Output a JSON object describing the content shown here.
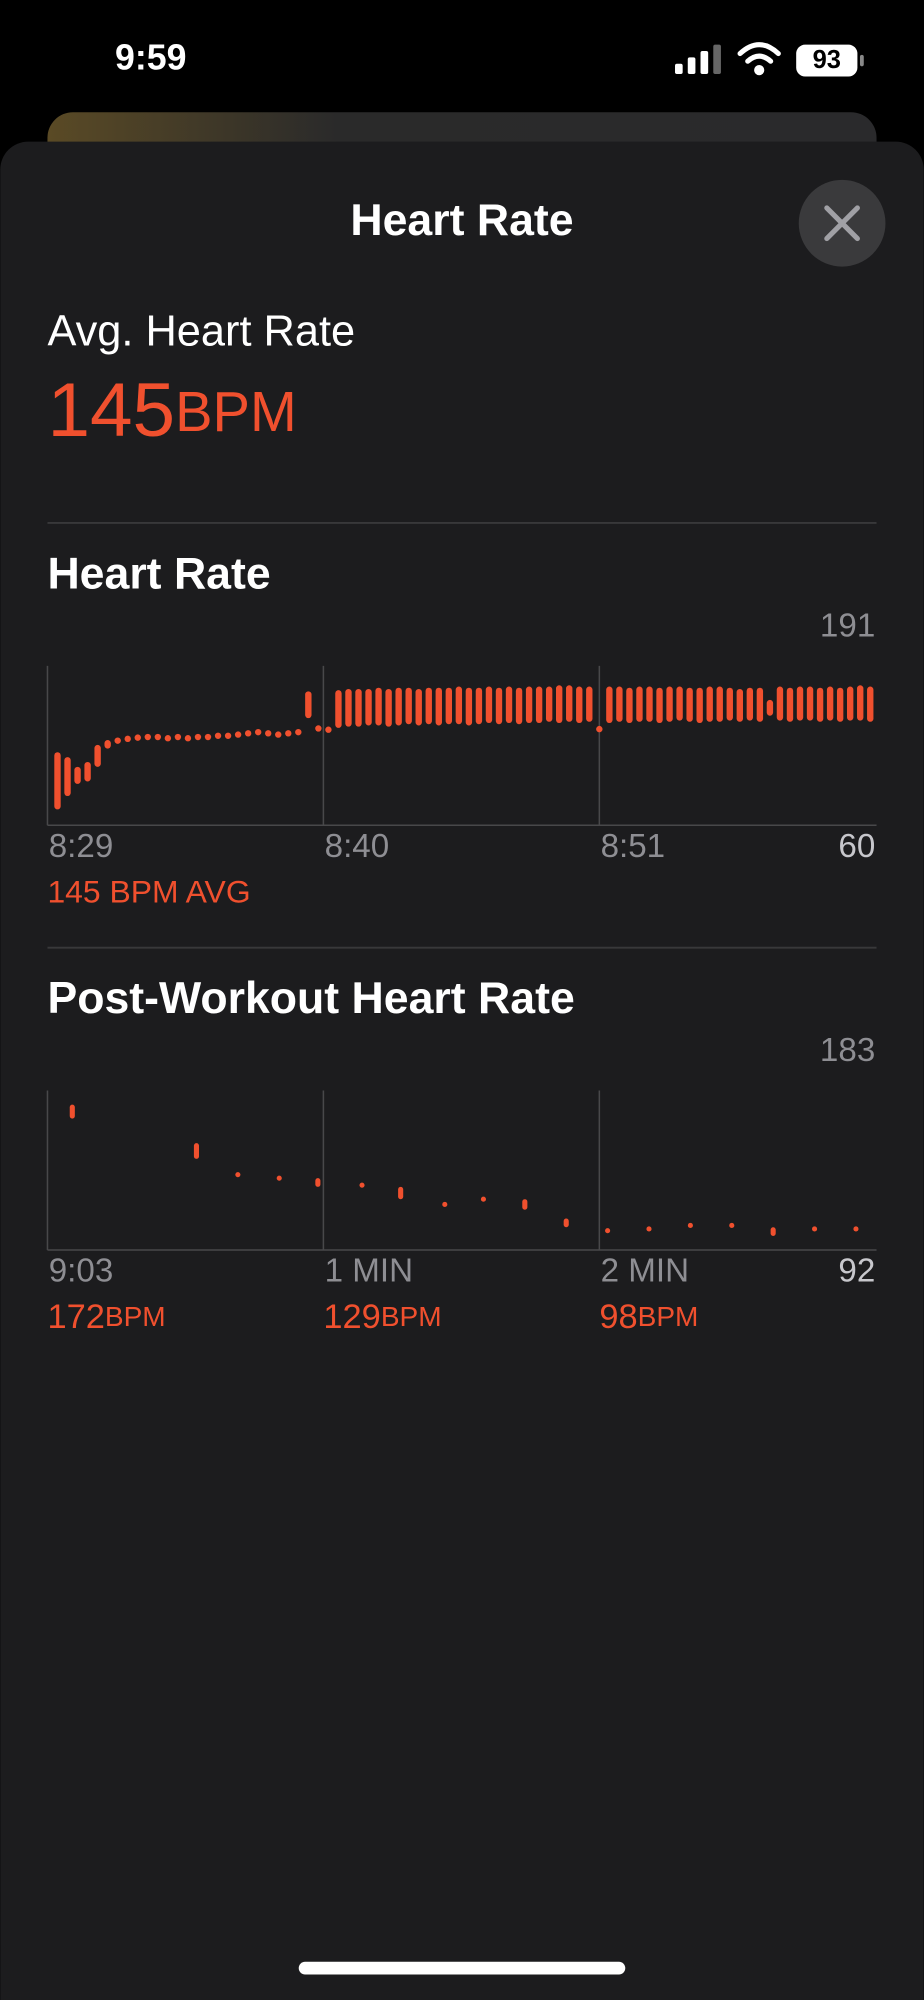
{
  "status_bar": {
    "time": "9:59",
    "battery": "93"
  },
  "header": {
    "title": "Heart Rate"
  },
  "summary": {
    "label": "Avg. Heart Rate",
    "value": 145,
    "unit": "BPM"
  },
  "chart_data": [
    {
      "type": "range-bar",
      "title": "Heart Rate",
      "color": "#f0502e",
      "x": [
        0.4,
        0.8,
        1.2,
        1.6,
        2,
        2.4,
        2.8,
        3.2,
        3.6,
        4,
        4.4,
        4.8,
        5.2,
        5.6,
        6,
        6.4,
        6.8,
        7.2,
        7.6,
        8,
        8.4,
        8.8,
        9.2,
        9.6,
        10,
        10.4,
        10.8,
        11.2,
        11.6,
        12,
        12.4,
        12.8,
        13.2,
        13.6,
        14,
        14.4,
        14.8,
        15.2,
        15.6,
        16,
        16.4,
        16.8,
        17.2,
        17.6,
        18,
        18.4,
        18.8,
        19.2,
        19.6,
        20,
        20.4,
        20.8,
        21.2,
        21.6,
        22,
        22.4,
        22.8,
        23.2,
        23.6,
        24,
        24.4,
        24.8,
        25.2,
        25.6,
        26,
        26.4,
        26.8,
        27.2,
        27.6,
        28,
        28.4,
        28.8,
        29.2,
        29.6,
        30,
        30.4,
        30.8,
        31.2,
        31.6,
        32,
        32.4,
        32.8
      ],
      "low": [
        73,
        84,
        94,
        96,
        108,
        123,
        127,
        129,
        130,
        131,
        131,
        130,
        131,
        130,
        131,
        131,
        132,
        132,
        133,
        134,
        135,
        134,
        133,
        134,
        135,
        148,
        138,
        137,
        140,
        141,
        141,
        142,
        142,
        141,
        142,
        143,
        142,
        143,
        142,
        143,
        143,
        142,
        143,
        144,
        143,
        144,
        143,
        144,
        144,
        145,
        144,
        145,
        144,
        145,
        137,
        144,
        145,
        144,
        145,
        145,
        144,
        145,
        146,
        145,
        144,
        145,
        145,
        146,
        145,
        146,
        145,
        150,
        146,
        145,
        146,
        146,
        145,
        146,
        145,
        146,
        146,
        145
      ],
      "high": [
        120,
        116,
        108,
        112,
        126,
        130,
        132,
        133,
        134,
        134,
        134,
        133,
        134,
        133,
        134,
        134,
        135,
        135,
        136,
        137,
        138,
        137,
        136,
        137,
        138,
        170,
        141,
        140,
        171,
        172,
        172,
        172,
        173,
        172,
        173,
        173,
        172,
        173,
        173,
        173,
        174,
        173,
        173,
        174,
        173,
        174,
        173,
        174,
        174,
        174,
        175,
        175,
        174,
        174,
        141,
        174,
        174,
        173,
        174,
        174,
        173,
        174,
        174,
        173,
        173,
        174,
        174,
        173,
        172,
        173,
        173,
        163,
        174,
        173,
        174,
        174,
        173,
        174,
        173,
        174,
        175,
        174
      ],
      "xlim": [
        0,
        33
      ],
      "xticks": [
        {
          "value": 0,
          "label": "8:29"
        },
        {
          "value": 11,
          "label": "8:40"
        },
        {
          "value": 22,
          "label": "8:51"
        }
      ],
      "ylim": [
        60,
        191
      ],
      "yticks": [
        60,
        191
      ],
      "footer": "145 BPM AVG"
    },
    {
      "type": "range-bar",
      "title": "Post-Workout Heart Rate",
      "color": "#f0502e",
      "x": [
        0.09,
        0.54,
        0.69,
        0.84,
        0.98,
        1.14,
        1.28,
        1.44,
        1.58,
        1.73,
        1.88,
        2.03,
        2.18,
        2.33,
        2.48,
        2.63,
        2.78,
        2.93
      ],
      "low": [
        167,
        144,
        135,
        133,
        128,
        129,
        121,
        118,
        121,
        115,
        105,
        103,
        104,
        106,
        106,
        100,
        104,
        104
      ],
      "high": [
        175,
        153,
        135,
        133,
        133,
        129,
        128,
        118,
        121,
        121,
        110,
        103,
        104,
        106,
        106,
        105,
        104,
        104
      ],
      "xlim": [
        0,
        3
      ],
      "xticks": [
        {
          "value": 0,
          "label": "9:03"
        },
        {
          "value": 1,
          "label": "1 MIN"
        },
        {
          "value": 2,
          "label": "2 MIN"
        }
      ],
      "ylim": [
        92,
        183
      ],
      "yticks": [
        92,
        183
      ],
      "summaries": [
        {
          "value": 172,
          "unit": "BPM"
        },
        {
          "value": 129,
          "unit": "BPM"
        },
        {
          "value": 98,
          "unit": "BPM"
        }
      ]
    }
  ]
}
